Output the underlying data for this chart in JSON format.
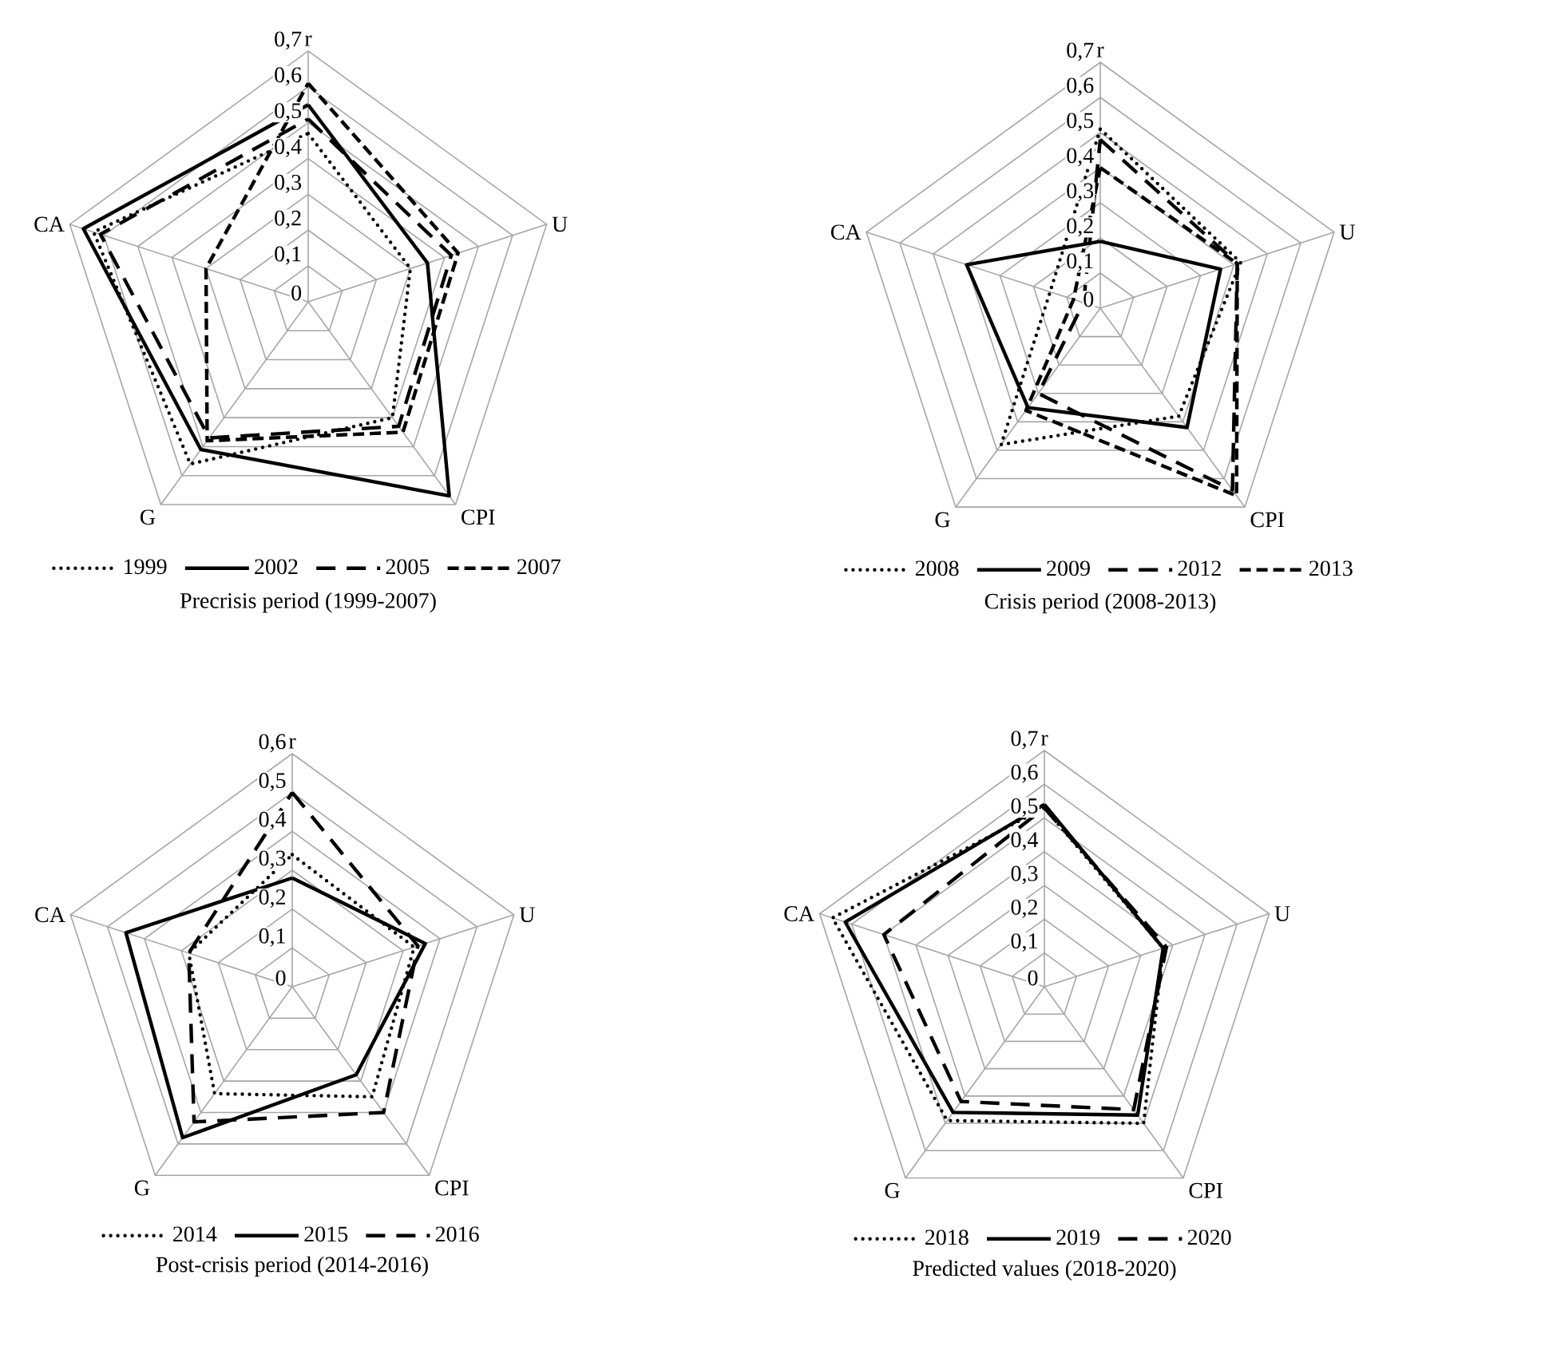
{
  "chart_data": [
    {
      "type": "radar",
      "title": "Precrisis period (1999-2007)",
      "categories": [
        "r",
        "U",
        "CPI",
        "G",
        "CA"
      ],
      "ylim": [
        0,
        0.7
      ],
      "yticks": [
        {
          "value": 0,
          "label": "0"
        },
        {
          "value": 0.1,
          "label": "0,1"
        },
        {
          "value": 0.2,
          "label": "0,2"
        },
        {
          "value": 0.3,
          "label": "0,3"
        },
        {
          "value": 0.4,
          "label": "0,4"
        },
        {
          "value": 0.5,
          "label": "0,5"
        },
        {
          "value": 0.6,
          "label": "0,6"
        },
        {
          "value": 0.7,
          "label": "0,7"
        }
      ],
      "grid": true,
      "legend": "bottom",
      "series": [
        {
          "name": "1999",
          "color": "#000000",
          "line_style": "dotted",
          "values": [
            0.47,
            0.3,
            0.4,
            0.56,
            0.63
          ]
        },
        {
          "name": "2002",
          "color": "#000000",
          "line_style": "solid",
          "values": [
            0.55,
            0.35,
            0.67,
            0.51,
            0.66
          ]
        },
        {
          "name": "2005",
          "color": "#000000",
          "line_style": "dashed",
          "values": [
            0.51,
            0.42,
            0.43,
            0.47,
            0.61
          ]
        },
        {
          "name": "2007",
          "color": "#000000",
          "line_style": "dashed",
          "values": [
            0.61,
            0.44,
            0.45,
            0.48,
            0.3
          ]
        }
      ]
    },
    {
      "type": "radar",
      "title": "Crisis period (2008-2013)",
      "categories": [
        "r",
        "U",
        "CPI",
        "G",
        "CA"
      ],
      "ylim": [
        0,
        0.7
      ],
      "yticks": [
        {
          "value": 0,
          "label": "0"
        },
        {
          "value": 0.1,
          "label": "0,1"
        },
        {
          "value": 0.2,
          "label": "0,2"
        },
        {
          "value": 0.3,
          "label": "0,3"
        },
        {
          "value": 0.4,
          "label": "0,4"
        },
        {
          "value": 0.5,
          "label": "0,5"
        },
        {
          "value": 0.6,
          "label": "0,6"
        },
        {
          "value": 0.7,
          "label": "0,7"
        }
      ],
      "grid": true,
      "legend": "bottom",
      "series": [
        {
          "name": "2008",
          "color": "#000000",
          "line_style": "dotted",
          "values": [
            0.51,
            0.42,
            0.38,
            0.48,
            0.15
          ]
        },
        {
          "name": "2009",
          "color": "#000000",
          "line_style": "solid",
          "values": [
            0.19,
            0.36,
            0.42,
            0.35,
            0.4
          ]
        },
        {
          "name": "2012",
          "color": "#000000",
          "line_style": "dashed",
          "values": [
            0.48,
            0.41,
            0.64,
            0.3,
            0.05
          ]
        },
        {
          "name": "2013",
          "color": "#000000",
          "line_style": "dashed",
          "values": [
            0.4,
            0.41,
            0.66,
            0.36,
            0.08
          ]
        }
      ]
    },
    {
      "type": "radar",
      "title": "Post-crisis period (2014-2016)",
      "categories": [
        "r",
        "U",
        "CPI",
        "G",
        "CA"
      ],
      "ylim": [
        0,
        0.6
      ],
      "yticks": [
        {
          "value": 0,
          "label": "0"
        },
        {
          "value": 0.1,
          "label": "0,1"
        },
        {
          "value": 0.2,
          "label": "0,2"
        },
        {
          "value": 0.3,
          "label": "0,3"
        },
        {
          "value": 0.4,
          "label": "0,4"
        },
        {
          "value": 0.5,
          "label": "0,5"
        },
        {
          "value": 0.6,
          "label": "0,6"
        }
      ],
      "grid": true,
      "legend": "bottom",
      "series": [
        {
          "name": "2014",
          "color": "#000000",
          "line_style": "dotted",
          "values": [
            0.34,
            0.33,
            0.35,
            0.34,
            0.28
          ]
        },
        {
          "name": "2015",
          "color": "#000000",
          "line_style": "solid",
          "values": [
            0.28,
            0.36,
            0.28,
            0.48,
            0.45
          ]
        },
        {
          "name": "2016",
          "color": "#000000",
          "line_style": "dashed",
          "values": [
            0.5,
            0.34,
            0.4,
            0.43,
            0.28
          ]
        }
      ]
    },
    {
      "type": "radar",
      "title": "Predicted values (2018-2020)",
      "categories": [
        "r",
        "U",
        "CPI",
        "G",
        "CA"
      ],
      "ylim": [
        0,
        0.7
      ],
      "yticks": [
        {
          "value": 0,
          "label": "0"
        },
        {
          "value": 0.1,
          "label": "0,1"
        },
        {
          "value": 0.2,
          "label": "0,2"
        },
        {
          "value": 0.3,
          "label": "0,3"
        },
        {
          "value": 0.4,
          "label": "0,4"
        },
        {
          "value": 0.5,
          "label": "0,5"
        },
        {
          "value": 0.6,
          "label": "0,6"
        },
        {
          "value": 0.7,
          "label": "0,7"
        }
      ],
      "grid": true,
      "legend": "bottom",
      "series": [
        {
          "name": "2018",
          "color": "#000000",
          "line_style": "dotted",
          "values": [
            0.53,
            0.37,
            0.5,
            0.49,
            0.66
          ]
        },
        {
          "name": "2019",
          "color": "#000000",
          "line_style": "solid",
          "values": [
            0.54,
            0.37,
            0.47,
            0.46,
            0.62
          ]
        },
        {
          "name": "2020",
          "color": "#000000",
          "line_style": "dashed",
          "values": [
            0.53,
            0.38,
            0.45,
            0.42,
            0.5
          ]
        }
      ]
    }
  ]
}
